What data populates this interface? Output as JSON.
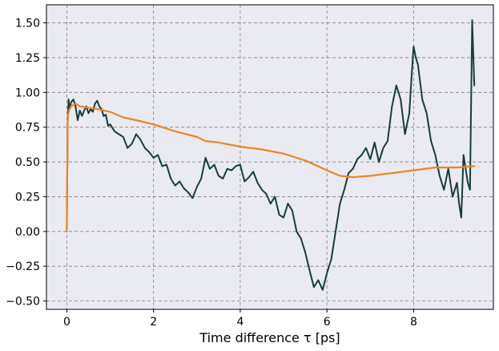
{
  "chart_data": {
    "type": "line",
    "title": "",
    "xlabel": "Time difference τ [ps]",
    "ylabel": "",
    "xlim": [
      -0.47,
      9.84
    ],
    "ylim": [
      -0.56,
      1.63
    ],
    "xticks": [
      0,
      2,
      4,
      6,
      8
    ],
    "yticks": [
      -0.5,
      -0.25,
      0.0,
      0.25,
      0.5,
      0.75,
      1.0,
      1.25,
      1.5
    ],
    "ytick_labels": [
      "−0.50",
      "−0.25",
      "0.00",
      "0.25",
      "0.50",
      "0.75",
      "1.00",
      "1.25",
      "1.50"
    ],
    "grid": true,
    "plot_background": "#eaeaf2",
    "grid_color": "#808080",
    "series": [
      {
        "color": "#153e38",
        "x": [
          0.0,
          0.02,
          0.04,
          0.06,
          0.1,
          0.15,
          0.2,
          0.25,
          0.3,
          0.35,
          0.4,
          0.45,
          0.5,
          0.55,
          0.6,
          0.65,
          0.7,
          0.75,
          0.8,
          0.85,
          0.9,
          0.95,
          1.0,
          1.1,
          1.2,
          1.3,
          1.4,
          1.5,
          1.6,
          1.7,
          1.8,
          1.9,
          2.0,
          2.1,
          2.2,
          2.3,
          2.4,
          2.5,
          2.6,
          2.7,
          2.8,
          2.9,
          3.0,
          3.1,
          3.2,
          3.3,
          3.4,
          3.5,
          3.6,
          3.7,
          3.8,
          3.9,
          4.0,
          4.1,
          4.2,
          4.3,
          4.4,
          4.5,
          4.6,
          4.7,
          4.8,
          4.9,
          5.0,
          5.1,
          5.2,
          5.3,
          5.4,
          5.5,
          5.6,
          5.7,
          5.8,
          5.9,
          6.0,
          6.1,
          6.2,
          6.3,
          6.4,
          6.5,
          6.6,
          6.7,
          6.8,
          6.9,
          7.0,
          7.1,
          7.2,
          7.3,
          7.4,
          7.5,
          7.6,
          7.7,
          7.8,
          7.9,
          7.95,
          8.0,
          8.05,
          8.1,
          8.2,
          8.3,
          8.4,
          8.5,
          8.6,
          8.7,
          8.8,
          8.9,
          9.0,
          9.05,
          9.1,
          9.15,
          9.2,
          9.25,
          9.3,
          9.35,
          9.4
        ],
        "y": [
          0.0,
          0.78,
          0.95,
          0.88,
          0.93,
          0.95,
          0.9,
          0.8,
          0.87,
          0.83,
          0.87,
          0.9,
          0.85,
          0.88,
          0.86,
          0.92,
          0.94,
          0.9,
          0.88,
          0.83,
          0.84,
          0.76,
          0.77,
          0.72,
          0.7,
          0.68,
          0.6,
          0.63,
          0.7,
          0.66,
          0.6,
          0.57,
          0.53,
          0.55,
          0.47,
          0.48,
          0.38,
          0.33,
          0.36,
          0.31,
          0.28,
          0.24,
          0.32,
          0.38,
          0.53,
          0.45,
          0.48,
          0.4,
          0.38,
          0.45,
          0.44,
          0.47,
          0.48,
          0.36,
          0.39,
          0.43,
          0.35,
          0.3,
          0.27,
          0.2,
          0.25,
          0.12,
          0.1,
          0.2,
          0.15,
          0.0,
          -0.05,
          -0.15,
          -0.28,
          -0.4,
          -0.35,
          -0.42,
          -0.3,
          -0.2,
          0.0,
          0.2,
          0.3,
          0.42,
          0.45,
          0.52,
          0.55,
          0.6,
          0.52,
          0.64,
          0.5,
          0.6,
          0.65,
          0.9,
          1.05,
          0.95,
          0.7,
          0.85,
          1.1,
          1.33,
          1.25,
          1.2,
          0.95,
          0.85,
          0.65,
          0.55,
          0.4,
          0.3,
          0.45,
          0.25,
          0.35,
          0.2,
          0.1,
          0.55,
          0.45,
          0.35,
          0.3,
          1.52,
          1.05
        ]
      },
      {
        "color": "#ed8424",
        "x": [
          0.0,
          0.02,
          0.05,
          0.1,
          0.15,
          0.2,
          0.3,
          0.5,
          0.7,
          1.0,
          1.3,
          1.6,
          2.0,
          2.5,
          3.0,
          3.2,
          3.5,
          4.0,
          4.5,
          5.0,
          5.5,
          6.0,
          6.3,
          6.6,
          7.0,
          7.5,
          8.0,
          8.5,
          9.0,
          9.4
        ],
        "y": [
          0.0,
          0.82,
          0.87,
          0.9,
          0.91,
          0.92,
          0.9,
          0.89,
          0.88,
          0.86,
          0.82,
          0.8,
          0.77,
          0.72,
          0.68,
          0.65,
          0.64,
          0.61,
          0.59,
          0.56,
          0.51,
          0.44,
          0.4,
          0.39,
          0.4,
          0.42,
          0.44,
          0.46,
          0.46,
          0.47
        ]
      }
    ]
  }
}
